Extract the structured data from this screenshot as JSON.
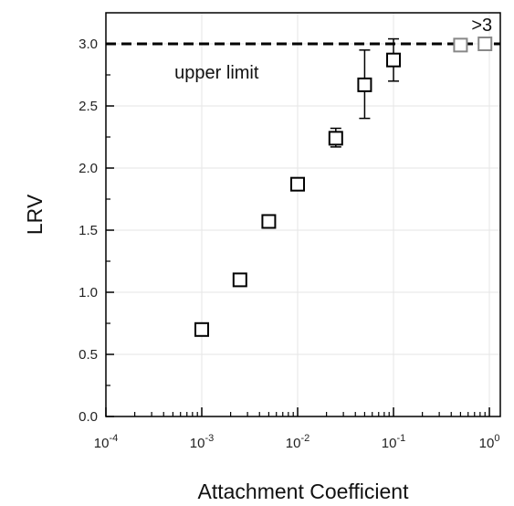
{
  "chart_data": {
    "type": "scatter",
    "xlabel": "Attachment Coefficient",
    "ylabel": "LRV",
    "x_scale": "log",
    "xlim": [
      0.0001,
      1.3
    ],
    "ylim": [
      0,
      3.25
    ],
    "x_ticks": [
      {
        "value": 0.0001,
        "base": "10",
        "exp": "-4"
      },
      {
        "value": 0.001,
        "base": "10",
        "exp": "-3"
      },
      {
        "value": 0.01,
        "base": "10",
        "exp": "-2"
      },
      {
        "value": 0.1,
        "base": "10",
        "exp": "-1"
      },
      {
        "value": 1,
        "base": "10",
        "exp": "0"
      }
    ],
    "y_ticks": [
      "0.0",
      "0.5",
      "1.0",
      "1.5",
      "2.0",
      "2.5",
      "3.0"
    ],
    "grid": true,
    "reference_line": {
      "y": 3.0,
      "label": "upper limit",
      "style": "dashed"
    },
    "annotations": [
      {
        "text": ">3"
      }
    ],
    "points": [
      {
        "x": 0.001,
        "y": 0.7
      },
      {
        "x": 0.0025,
        "y": 1.1
      },
      {
        "x": 0.005,
        "y": 1.57
      },
      {
        "x": 0.01,
        "y": 1.87
      },
      {
        "x": 0.025,
        "y": 2.24,
        "err_low": 2.17,
        "err_high": 2.32
      },
      {
        "x": 0.05,
        "y": 2.67,
        "err_low": 2.4,
        "err_high": 2.95
      },
      {
        "x": 0.1,
        "y": 2.87,
        "err_low": 2.7,
        "err_high": 3.04
      }
    ],
    "censored_points": [
      {
        "x": 0.5,
        "y": 2.99,
        "err_low": 2.95,
        "err_high": 3.03
      },
      {
        "x": 0.9,
        "y": 3.0
      }
    ],
    "colors": {
      "marker": "#000000",
      "censored_marker": "#888888",
      "grid": "#e6e6e6",
      "axis": "#000000"
    }
  }
}
